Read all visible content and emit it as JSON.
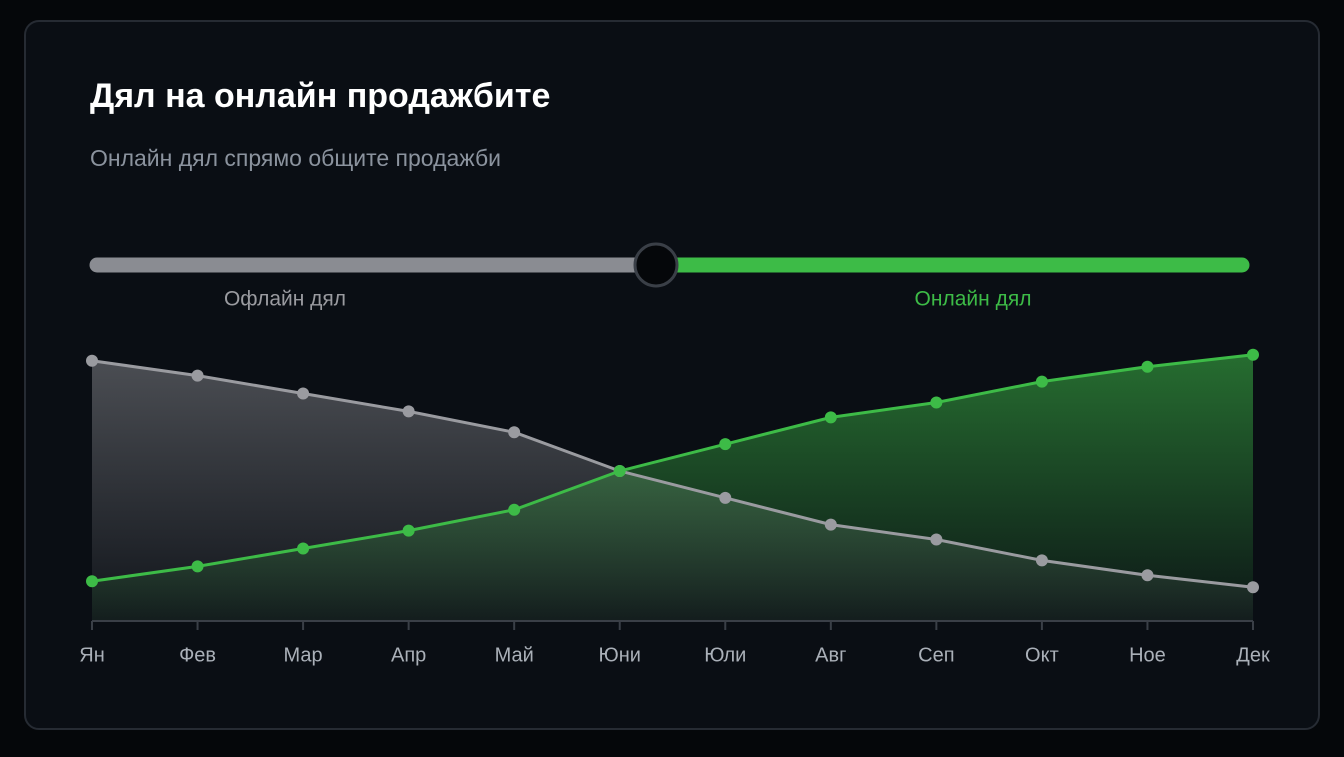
{
  "chart_data": {
    "type": "line",
    "title": "Дял на онлайн продажбите",
    "subtitle": "Онлайн дял спрямо общите продажби",
    "categories": [
      "Ян",
      "Фев",
      "Мар",
      "Апр",
      "Май",
      "Юни",
      "Юли",
      "Авг",
      "Сеп",
      "Окт",
      "Ное",
      "Дек"
    ],
    "series": [
      {
        "name": "Офлайн дял",
        "color": "#9a9ba0",
        "values": [
          87,
          82,
          76,
          70,
          63,
          50,
          41,
          32,
          27,
          20,
          15,
          11
        ]
      },
      {
        "name": "Онлайн дял",
        "color": "#3dbb47",
        "values": [
          13,
          18,
          24,
          30,
          37,
          50,
          59,
          68,
          73,
          80,
          85,
          89
        ]
      }
    ],
    "ylim": [
      0,
      100
    ]
  }
}
